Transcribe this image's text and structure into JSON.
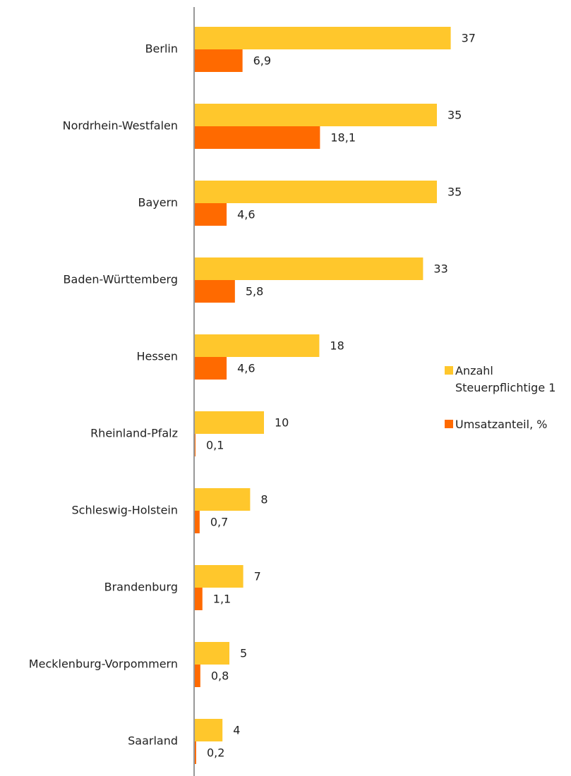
{
  "chart_data": {
    "type": "bar",
    "orientation": "horizontal",
    "categories": [
      "Berlin",
      "Nordrhein-Westfalen",
      "Bayern",
      "Baden-Württemberg",
      "Hessen",
      "Rheinland-Pfalz",
      "Schleswig-Holstein",
      "Brandenburg",
      "Mecklenburg-Vorpommern",
      "Saarland"
    ],
    "series": [
      {
        "name": "Anzahl Steuerpflichtige 1",
        "color": "#ffc72c",
        "values": [
          37,
          35,
          35,
          33,
          18,
          10,
          8,
          7,
          5,
          4
        ]
      },
      {
        "name": "Umsatzanteil, %",
        "color": "#ff6a00",
        "values": [
          6.9,
          18.1,
          4.6,
          5.8,
          4.6,
          0.1,
          0.7,
          1.1,
          0.8,
          0.2
        ],
        "value_labels": [
          "6,9",
          "18,1",
          "4,6",
          "5,8",
          "4,6",
          "0,1",
          "0,7",
          "1,1",
          "0,8",
          "0,2"
        ]
      }
    ],
    "legend": "right",
    "grid": false
  }
}
